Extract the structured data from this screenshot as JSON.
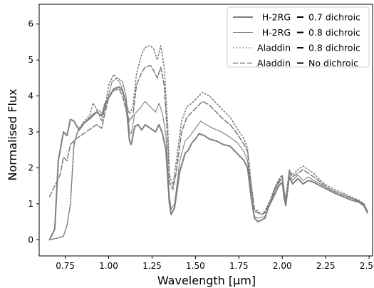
{
  "chart_data": {
    "type": "line",
    "xlabel": "Wavelength [µm]",
    "ylabel": "Normalised Flux",
    "xlim": [
      0.6,
      2.52
    ],
    "ylim": [
      -0.45,
      6.55
    ],
    "x_ticks": [
      0.75,
      1.0,
      1.25,
      1.5,
      1.75,
      2.0,
      2.25,
      2.5
    ],
    "x_tick_labels": [
      "0.75",
      "1.00",
      "1.25",
      "1.50",
      "1.75",
      "2.00",
      "2.25",
      "2.50"
    ],
    "y_ticks": [
      0,
      1,
      2,
      3,
      4,
      5,
      6
    ],
    "y_tick_labels": [
      "0",
      "1",
      "2",
      "3",
      "4",
      "5",
      "6"
    ],
    "grid": false,
    "legend_position": "top-right",
    "series": [
      {
        "name": "H-2RG",
        "suffix": "0.7 dichroic",
        "color": "#7f7f7f",
        "style": "solid",
        "width": 2.0,
        "points": [
          [
            0.66,
            0.0
          ],
          [
            0.69,
            0.3
          ],
          [
            0.71,
            2.2
          ],
          [
            0.74,
            3.0
          ],
          [
            0.76,
            2.9
          ],
          [
            0.78,
            3.35
          ],
          [
            0.8,
            3.3
          ],
          [
            0.83,
            3.05
          ],
          [
            0.86,
            3.25
          ],
          [
            0.9,
            3.4
          ],
          [
            0.93,
            3.55
          ],
          [
            0.96,
            3.45
          ],
          [
            0.98,
            3.8
          ],
          [
            1.0,
            3.95
          ],
          [
            1.03,
            4.2
          ],
          [
            1.06,
            4.25
          ],
          [
            1.08,
            4.15
          ],
          [
            1.1,
            3.8
          ],
          [
            1.12,
            2.75
          ],
          [
            1.13,
            2.65
          ],
          [
            1.15,
            3.15
          ],
          [
            1.17,
            3.2
          ],
          [
            1.19,
            3.05
          ],
          [
            1.21,
            3.2
          ],
          [
            1.24,
            3.1
          ],
          [
            1.27,
            3.0
          ],
          [
            1.29,
            3.2
          ],
          [
            1.31,
            2.95
          ],
          [
            1.33,
            2.5
          ],
          [
            1.35,
            1.0
          ],
          [
            1.36,
            0.7
          ],
          [
            1.38,
            0.9
          ],
          [
            1.41,
            1.9
          ],
          [
            1.44,
            2.4
          ],
          [
            1.46,
            2.5
          ],
          [
            1.48,
            2.7
          ],
          [
            1.5,
            2.8
          ],
          [
            1.52,
            2.95
          ],
          [
            1.55,
            2.9
          ],
          [
            1.58,
            2.8
          ],
          [
            1.62,
            2.75
          ],
          [
            1.66,
            2.65
          ],
          [
            1.7,
            2.6
          ],
          [
            1.74,
            2.4
          ],
          [
            1.78,
            2.2
          ],
          [
            1.8,
            2.0
          ],
          [
            1.82,
            1.2
          ],
          [
            1.84,
            0.6
          ],
          [
            1.86,
            0.5
          ],
          [
            1.88,
            0.55
          ],
          [
            1.9,
            0.6
          ],
          [
            1.92,
            0.9
          ],
          [
            1.95,
            1.2
          ],
          [
            1.98,
            1.5
          ],
          [
            2.0,
            1.6
          ],
          [
            2.01,
            1.2
          ],
          [
            2.02,
            0.95
          ],
          [
            2.04,
            1.75
          ],
          [
            2.06,
            1.55
          ],
          [
            2.09,
            1.7
          ],
          [
            2.12,
            1.55
          ],
          [
            2.15,
            1.65
          ],
          [
            2.18,
            1.6
          ],
          [
            2.22,
            1.5
          ],
          [
            2.26,
            1.4
          ],
          [
            2.3,
            1.3
          ],
          [
            2.35,
            1.2
          ],
          [
            2.4,
            1.1
          ],
          [
            2.44,
            1.05
          ],
          [
            2.47,
            0.95
          ],
          [
            2.49,
            0.75
          ]
        ]
      },
      {
        "name": "H-2RG",
        "suffix": "0.8 dichroic",
        "color": "#7f7f7f",
        "style": "solid",
        "width": 1.1,
        "points": [
          [
            0.66,
            0.0
          ],
          [
            0.71,
            0.05
          ],
          [
            0.74,
            0.1
          ],
          [
            0.76,
            0.4
          ],
          [
            0.78,
            1.0
          ],
          [
            0.8,
            2.6
          ],
          [
            0.82,
            3.0
          ],
          [
            0.85,
            3.2
          ],
          [
            0.88,
            3.35
          ],
          [
            0.91,
            3.5
          ],
          [
            0.94,
            3.6
          ],
          [
            0.97,
            3.5
          ],
          [
            0.99,
            3.85
          ],
          [
            1.02,
            4.4
          ],
          [
            1.05,
            4.5
          ],
          [
            1.08,
            4.4
          ],
          [
            1.1,
            4.0
          ],
          [
            1.12,
            3.0
          ],
          [
            1.13,
            2.95
          ],
          [
            1.15,
            3.5
          ],
          [
            1.18,
            3.65
          ],
          [
            1.21,
            3.85
          ],
          [
            1.24,
            3.7
          ],
          [
            1.27,
            3.55
          ],
          [
            1.29,
            3.8
          ],
          [
            1.31,
            3.5
          ],
          [
            1.33,
            2.9
          ],
          [
            1.35,
            1.2
          ],
          [
            1.36,
            0.85
          ],
          [
            1.38,
            1.0
          ],
          [
            1.41,
            2.2
          ],
          [
            1.44,
            2.75
          ],
          [
            1.47,
            2.9
          ],
          [
            1.5,
            3.1
          ],
          [
            1.53,
            3.3
          ],
          [
            1.56,
            3.2
          ],
          [
            1.6,
            3.1
          ],
          [
            1.65,
            3.0
          ],
          [
            1.7,
            2.85
          ],
          [
            1.74,
            2.7
          ],
          [
            1.78,
            2.45
          ],
          [
            1.8,
            2.2
          ],
          [
            1.82,
            1.3
          ],
          [
            1.84,
            0.65
          ],
          [
            1.86,
            0.6
          ],
          [
            1.88,
            0.62
          ],
          [
            1.9,
            0.65
          ],
          [
            1.93,
            1.0
          ],
          [
            1.96,
            1.4
          ],
          [
            1.99,
            1.65
          ],
          [
            2.0,
            1.7
          ],
          [
            2.01,
            1.3
          ],
          [
            2.02,
            1.0
          ],
          [
            2.04,
            1.85
          ],
          [
            2.06,
            1.65
          ],
          [
            2.09,
            1.8
          ],
          [
            2.12,
            1.65
          ],
          [
            2.15,
            1.75
          ],
          [
            2.18,
            1.65
          ],
          [
            2.22,
            1.55
          ],
          [
            2.26,
            1.45
          ],
          [
            2.3,
            1.35
          ],
          [
            2.35,
            1.25
          ],
          [
            2.4,
            1.15
          ],
          [
            2.44,
            1.08
          ],
          [
            2.47,
            1.0
          ],
          [
            2.49,
            0.8
          ]
        ]
      },
      {
        "name": "Aladdin",
        "suffix": "0.8 dichroic",
        "color": "#7f7f7f",
        "style": "dotted",
        "width": 1.6,
        "points": [
          [
            0.66,
            0.0
          ],
          [
            0.71,
            0.05
          ],
          [
            0.74,
            0.1
          ],
          [
            0.76,
            0.4
          ],
          [
            0.78,
            1.0
          ],
          [
            0.8,
            2.7
          ],
          [
            0.83,
            3.1
          ],
          [
            0.86,
            3.3
          ],
          [
            0.89,
            3.45
          ],
          [
            0.91,
            3.8
          ],
          [
            0.93,
            3.65
          ],
          [
            0.96,
            3.3
          ],
          [
            0.98,
            3.7
          ],
          [
            1.0,
            4.3
          ],
          [
            1.03,
            4.6
          ],
          [
            1.06,
            4.4
          ],
          [
            1.08,
            4.2
          ],
          [
            1.1,
            3.8
          ],
          [
            1.12,
            3.5
          ],
          [
            1.14,
            3.7
          ],
          [
            1.16,
            4.6
          ],
          [
            1.19,
            5.15
          ],
          [
            1.21,
            5.35
          ],
          [
            1.24,
            5.4
          ],
          [
            1.26,
            5.3
          ],
          [
            1.28,
            5.0
          ],
          [
            1.3,
            5.4
          ],
          [
            1.32,
            4.8
          ],
          [
            1.34,
            3.2
          ],
          [
            1.35,
            1.8
          ],
          [
            1.37,
            1.5
          ],
          [
            1.39,
            2.2
          ],
          [
            1.42,
            3.3
          ],
          [
            1.45,
            3.7
          ],
          [
            1.48,
            3.8
          ],
          [
            1.51,
            3.95
          ],
          [
            1.54,
            4.1
          ],
          [
            1.58,
            4.0
          ],
          [
            1.62,
            3.8
          ],
          [
            1.66,
            3.6
          ],
          [
            1.7,
            3.4
          ],
          [
            1.74,
            3.1
          ],
          [
            1.78,
            2.8
          ],
          [
            1.8,
            2.55
          ],
          [
            1.82,
            1.6
          ],
          [
            1.84,
            0.85
          ],
          [
            1.86,
            0.8
          ],
          [
            1.88,
            0.7
          ],
          [
            1.9,
            0.8
          ],
          [
            1.93,
            1.1
          ],
          [
            1.96,
            1.5
          ],
          [
            1.99,
            1.75
          ],
          [
            2.0,
            1.8
          ],
          [
            2.01,
            1.4
          ],
          [
            2.02,
            1.1
          ],
          [
            2.04,
            1.95
          ],
          [
            2.06,
            1.8
          ],
          [
            2.09,
            1.95
          ],
          [
            2.12,
            2.05
          ],
          [
            2.15,
            1.95
          ],
          [
            2.18,
            1.85
          ],
          [
            2.22,
            1.65
          ],
          [
            2.26,
            1.5
          ],
          [
            2.3,
            1.4
          ],
          [
            2.35,
            1.3
          ],
          [
            2.4,
            1.18
          ],
          [
            2.44,
            1.1
          ],
          [
            2.47,
            1.0
          ],
          [
            2.49,
            0.8
          ]
        ]
      },
      {
        "name": "Aladdin",
        "suffix": "No dichroic",
        "color": "#7f7f7f",
        "style": "dashed",
        "width": 1.6,
        "points": [
          [
            0.66,
            1.2
          ],
          [
            0.69,
            1.5
          ],
          [
            0.72,
            1.8
          ],
          [
            0.74,
            2.3
          ],
          [
            0.76,
            2.2
          ],
          [
            0.78,
            2.65
          ],
          [
            0.81,
            2.8
          ],
          [
            0.84,
            2.9
          ],
          [
            0.87,
            3.0
          ],
          [
            0.9,
            3.1
          ],
          [
            0.93,
            3.2
          ],
          [
            0.96,
            3.1
          ],
          [
            0.98,
            3.55
          ],
          [
            1.0,
            3.95
          ],
          [
            1.03,
            4.15
          ],
          [
            1.06,
            4.2
          ],
          [
            1.08,
            4.0
          ],
          [
            1.1,
            3.6
          ],
          [
            1.12,
            3.3
          ],
          [
            1.14,
            3.45
          ],
          [
            1.16,
            4.3
          ],
          [
            1.19,
            4.65
          ],
          [
            1.21,
            4.8
          ],
          [
            1.24,
            4.85
          ],
          [
            1.26,
            4.7
          ],
          [
            1.28,
            4.5
          ],
          [
            1.3,
            4.8
          ],
          [
            1.32,
            4.3
          ],
          [
            1.34,
            2.8
          ],
          [
            1.35,
            1.6
          ],
          [
            1.37,
            1.4
          ],
          [
            1.39,
            1.9
          ],
          [
            1.42,
            3.0
          ],
          [
            1.45,
            3.4
          ],
          [
            1.48,
            3.55
          ],
          [
            1.51,
            3.7
          ],
          [
            1.54,
            3.85
          ],
          [
            1.58,
            3.75
          ],
          [
            1.62,
            3.55
          ],
          [
            1.66,
            3.35
          ],
          [
            1.7,
            3.2
          ],
          [
            1.74,
            2.95
          ],
          [
            1.78,
            2.65
          ],
          [
            1.8,
            2.45
          ],
          [
            1.82,
            1.5
          ],
          [
            1.84,
            0.8
          ],
          [
            1.86,
            0.75
          ],
          [
            1.88,
            0.7
          ],
          [
            1.9,
            0.75
          ],
          [
            1.93,
            1.05
          ],
          [
            1.96,
            1.45
          ],
          [
            1.99,
            1.7
          ],
          [
            2.0,
            1.75
          ],
          [
            2.01,
            1.35
          ],
          [
            2.02,
            1.05
          ],
          [
            2.04,
            1.9
          ],
          [
            2.06,
            1.75
          ],
          [
            2.09,
            1.85
          ],
          [
            2.12,
            1.95
          ],
          [
            2.15,
            1.85
          ],
          [
            2.18,
            1.75
          ],
          [
            2.22,
            1.6
          ],
          [
            2.26,
            1.45
          ],
          [
            2.3,
            1.35
          ],
          [
            2.35,
            1.25
          ],
          [
            2.4,
            1.15
          ],
          [
            2.44,
            1.08
          ],
          [
            2.47,
            0.98
          ],
          [
            2.49,
            0.78
          ]
        ]
      }
    ]
  }
}
